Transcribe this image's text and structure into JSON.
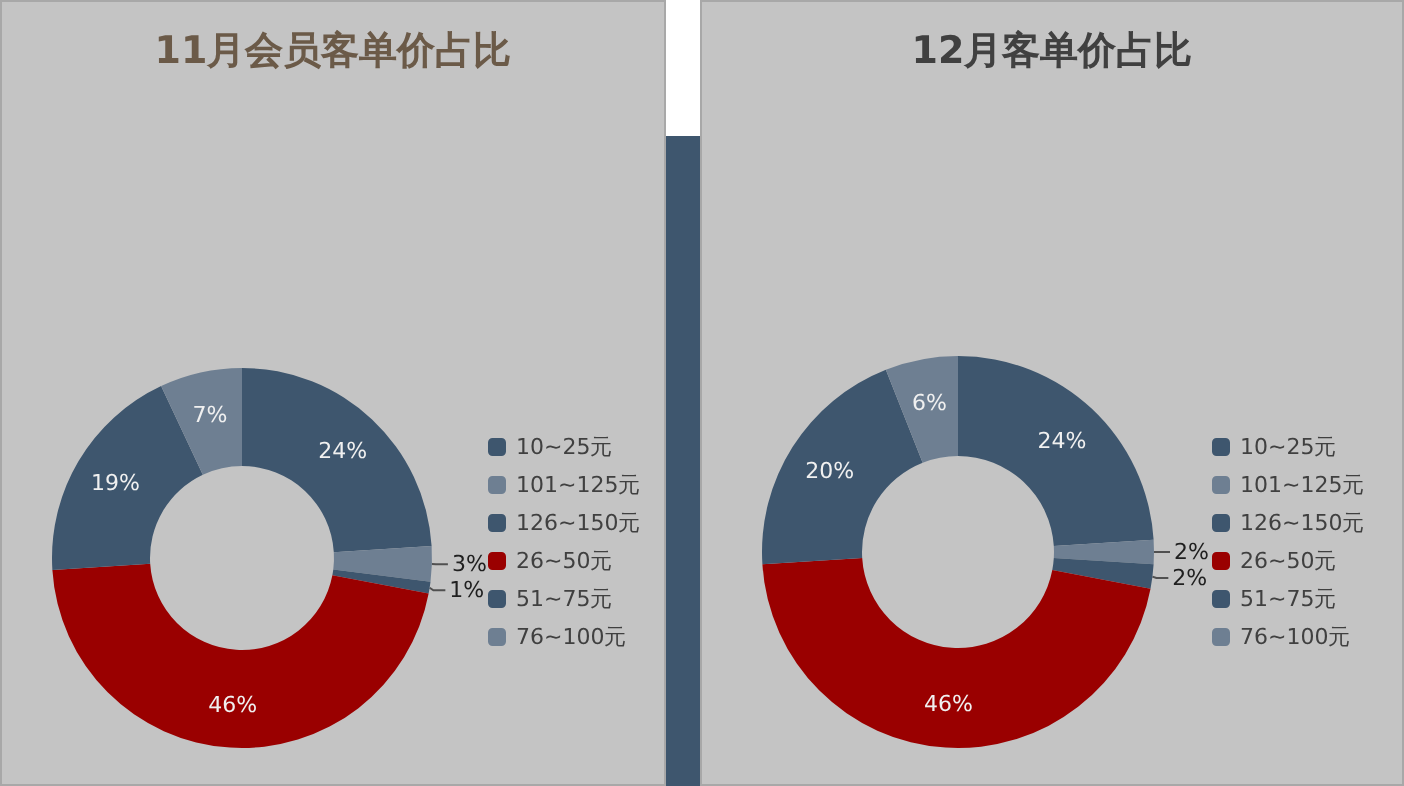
{
  "chart_data": [
    {
      "type": "donut",
      "title": "11月会员客单价占比",
      "categories": [
        "10~25元",
        "101~125元",
        "126~150元",
        "26~50元",
        "51~75元",
        "76~100元"
      ],
      "values": [
        24,
        3,
        1,
        46,
        19,
        7
      ],
      "value_labels": [
        "24%",
        "3%",
        "1%",
        "46%",
        "19%",
        "7%"
      ],
      "colors": [
        "#3e566e",
        "#6e7f92",
        "#3e566e",
        "#9a0000",
        "#3e566e",
        "#6e7f92"
      ],
      "legend": "right"
    },
    {
      "type": "donut",
      "title": "12月客单价占比",
      "categories": [
        "10~25元",
        "101~125元",
        "126~150元",
        "26~50元",
        "51~75元",
        "76~100元"
      ],
      "values": [
        24,
        2,
        2,
        46,
        20,
        6
      ],
      "value_labels": [
        "24%",
        "2%",
        "2%",
        "46%",
        "20%",
        "6%"
      ],
      "colors": [
        "#3e566e",
        "#6e7f92",
        "#3e566e",
        "#9a0000",
        "#3e566e",
        "#6e7f92"
      ],
      "legend": "right"
    }
  ]
}
